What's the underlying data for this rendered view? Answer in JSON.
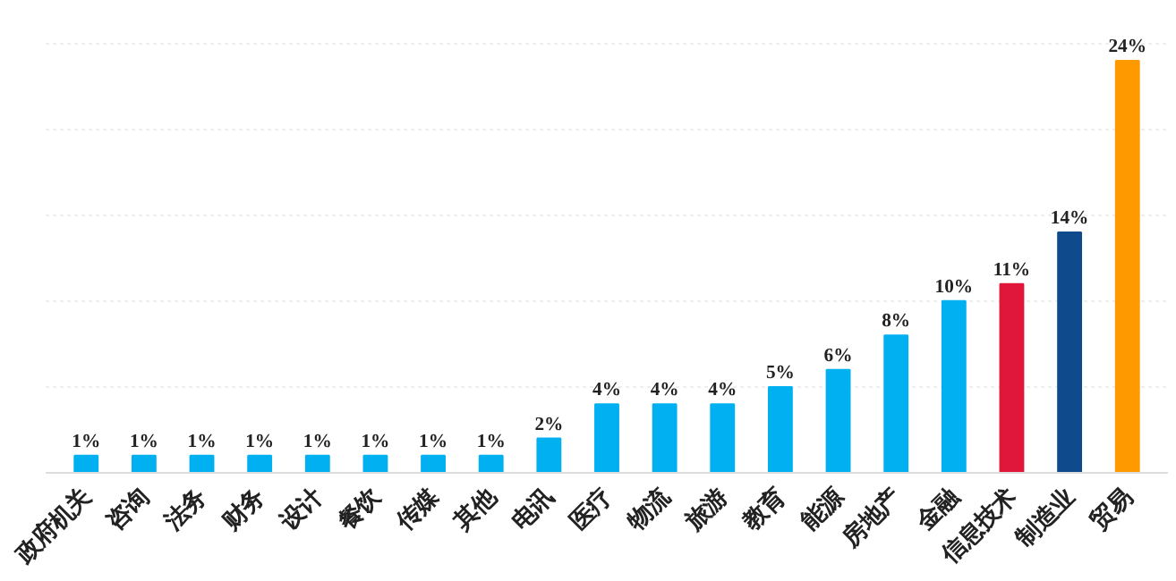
{
  "chart_data": {
    "type": "bar",
    "categories": [
      "政府机关",
      "咨询",
      "法务",
      "财务",
      "设计",
      "餐饮",
      "传媒",
      "其他",
      "电讯",
      "医疗",
      "物流",
      "旅游",
      "教育",
      "能源",
      "房地产",
      "金融",
      "信息技术",
      "制造业",
      "贸易"
    ],
    "values": [
      1,
      1,
      1,
      1,
      1,
      1,
      1,
      1,
      2,
      4,
      4,
      4,
      5,
      6,
      8,
      10,
      11,
      14,
      24
    ],
    "colors": [
      "#00b0f0",
      "#00b0f0",
      "#00b0f0",
      "#00b0f0",
      "#00b0f0",
      "#00b0f0",
      "#00b0f0",
      "#00b0f0",
      "#00b0f0",
      "#00b0f0",
      "#00b0f0",
      "#00b0f0",
      "#00b0f0",
      "#00b0f0",
      "#00b0f0",
      "#00b0f0",
      "#e0173a",
      "#0f4a8c",
      "#ff9900"
    ],
    "value_labels": [
      "1%",
      "1%",
      "1%",
      "1%",
      "1%",
      "1%",
      "1%",
      "1%",
      "2%",
      "4%",
      "4%",
      "4%",
      "5%",
      "6%",
      "8%",
      "10%",
      "11%",
      "14%",
      "24%"
    ],
    "grid": "y",
    "tick_labels": "x"
  }
}
